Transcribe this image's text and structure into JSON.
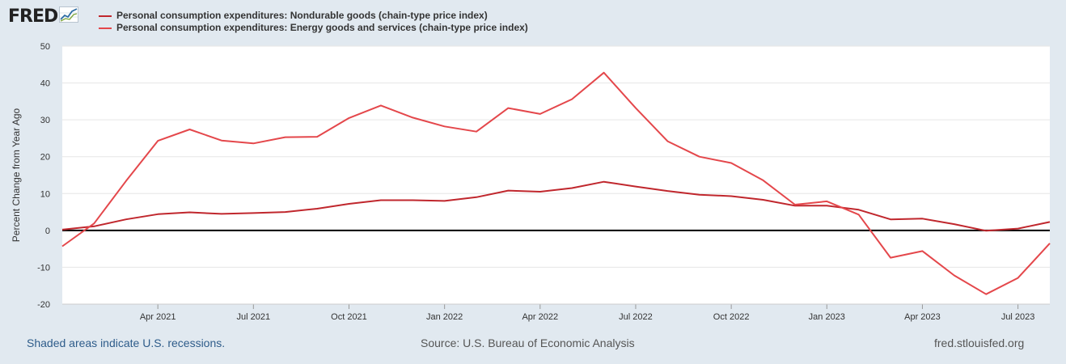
{
  "header": {
    "logo_text": "FRED",
    "logo_icon": "line-chart-icon"
  },
  "chart_data": {
    "type": "line",
    "ylabel": "Percent Change from Year Ago",
    "ylim": [
      -20,
      50
    ],
    "yticks": [
      50,
      40,
      30,
      20,
      10,
      0,
      -10,
      -20
    ],
    "x_dates": [
      "2021-01",
      "2021-02",
      "2021-03",
      "2021-04",
      "2021-05",
      "2021-06",
      "2021-07",
      "2021-08",
      "2021-09",
      "2021-10",
      "2021-11",
      "2021-12",
      "2022-01",
      "2022-02",
      "2022-03",
      "2022-04",
      "2022-05",
      "2022-06",
      "2022-07",
      "2022-08",
      "2022-09",
      "2022-10",
      "2022-11",
      "2022-12",
      "2023-01",
      "2023-02",
      "2023-03",
      "2023-04",
      "2023-05",
      "2023-06",
      "2023-07",
      "2023-08"
    ],
    "xtick_labels": [
      {
        "index": 3,
        "label": "Apr 2021"
      },
      {
        "index": 6,
        "label": "Jul 2021"
      },
      {
        "index": 9,
        "label": "Oct 2021"
      },
      {
        "index": 12,
        "label": "Jan 2022"
      },
      {
        "index": 15,
        "label": "Apr 2022"
      },
      {
        "index": 18,
        "label": "Jul 2022"
      },
      {
        "index": 21,
        "label": "Oct 2022"
      },
      {
        "index": 24,
        "label": "Jan 2023"
      },
      {
        "index": 27,
        "label": "Apr 2023"
      },
      {
        "index": 30,
        "label": "Jul 2023"
      }
    ],
    "series": [
      {
        "name": "Personal consumption expenditures: Nondurable goods (chain-type price index)",
        "color": "#c0272d",
        "values": [
          0.2,
          1.1,
          3.0,
          4.4,
          4.9,
          4.5,
          4.7,
          5.0,
          5.9,
          7.2,
          8.2,
          8.2,
          8.0,
          9.0,
          10.8,
          10.5,
          11.5,
          13.2,
          11.9,
          10.7,
          9.7,
          9.3,
          8.3,
          6.7,
          6.7,
          5.6,
          3.0,
          3.2,
          1.7,
          -0.1,
          0.5,
          2.3
        ]
      },
      {
        "name": "Personal consumption expenditures: Energy goods and services (chain-type price index)",
        "color": "#e4474b",
        "values": [
          -4.3,
          1.9,
          13.4,
          24.3,
          27.4,
          24.4,
          23.6,
          25.3,
          25.4,
          30.5,
          33.9,
          30.6,
          28.2,
          26.8,
          33.2,
          31.6,
          35.6,
          42.8,
          33.2,
          24.2,
          20.0,
          18.3,
          13.6,
          7.0,
          7.9,
          4.3,
          -7.4,
          -5.6,
          -12.2,
          -17.3,
          -12.9,
          -3.5
        ]
      }
    ]
  },
  "footer": {
    "recession_note": "Shaded areas indicate U.S. recessions.",
    "source": "Source: U.S. Bureau of Economic Analysis",
    "site": "fred.stlouisfed.org"
  }
}
